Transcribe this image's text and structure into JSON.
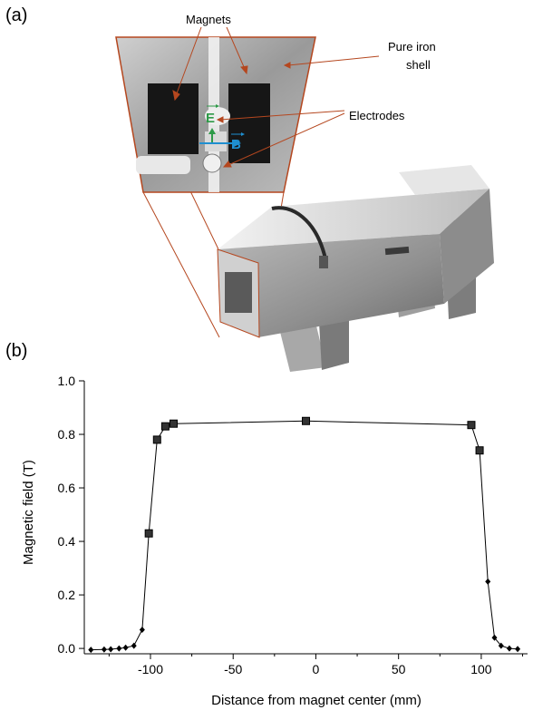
{
  "panel_a": {
    "label": "(a)",
    "annotations": {
      "magnets": "Magnets",
      "shell_line1": "Pure iron",
      "shell_line2": "shell",
      "electrodes": "Electrodes",
      "e_symbol": "E",
      "b_symbol": "B"
    },
    "colors": {
      "arrow": "#b5471f",
      "e_field": "#2e9a48",
      "b_field": "#1f8fd0"
    }
  },
  "panel_b": {
    "label": "(b)"
  },
  "chart_data": {
    "type": "scatter",
    "title": "",
    "xlabel": "Distance from magnet center (mm)",
    "ylabel": "Magnetic field (T)",
    "xlim": [
      -140,
      128
    ],
    "ylim": [
      0,
      1.0
    ],
    "xticks": [
      -100,
      -50,
      0,
      50,
      100
    ],
    "xtick_labels": [
      "-100",
      "-50",
      "0",
      "50",
      "100"
    ],
    "yticks": [
      0.0,
      0.2,
      0.4,
      0.6,
      0.8,
      1.0
    ],
    "ytick_labels": [
      "0.0",
      "0.2",
      "0.4",
      "0.6",
      "0.8",
      "1.0"
    ],
    "grid": false,
    "connected": true,
    "series": [
      {
        "points": [
          {
            "x": -136,
            "y": -0.005,
            "m": "dot"
          },
          {
            "x": -128,
            "y": -0.004,
            "m": "dot"
          },
          {
            "x": -124,
            "y": -0.003,
            "m": "dot"
          },
          {
            "x": -119,
            "y": 0.0,
            "m": "dot"
          },
          {
            "x": -115,
            "y": 0.003,
            "m": "dot"
          },
          {
            "x": -110,
            "y": 0.01,
            "m": "dot"
          },
          {
            "x": -105,
            "y": 0.07,
            "m": "dot"
          },
          {
            "x": -101,
            "y": 0.43,
            "m": "sq"
          },
          {
            "x": -96,
            "y": 0.78,
            "m": "sq"
          },
          {
            "x": -91,
            "y": 0.83,
            "m": "sq"
          },
          {
            "x": -86,
            "y": 0.84,
            "m": "sq"
          },
          {
            "x": -6,
            "y": 0.85,
            "m": "sq"
          },
          {
            "x": 94,
            "y": 0.835,
            "m": "sq"
          },
          {
            "x": 99,
            "y": 0.74,
            "m": "sq"
          },
          {
            "x": 104,
            "y": 0.25,
            "m": "dot"
          },
          {
            "x": 108,
            "y": 0.04,
            "m": "dot"
          },
          {
            "x": 112,
            "y": 0.01,
            "m": "dot"
          },
          {
            "x": 117,
            "y": 0.0,
            "m": "dot"
          },
          {
            "x": 122,
            "y": -0.002,
            "m": "dot"
          }
        ],
        "color": "#000000"
      }
    ]
  }
}
